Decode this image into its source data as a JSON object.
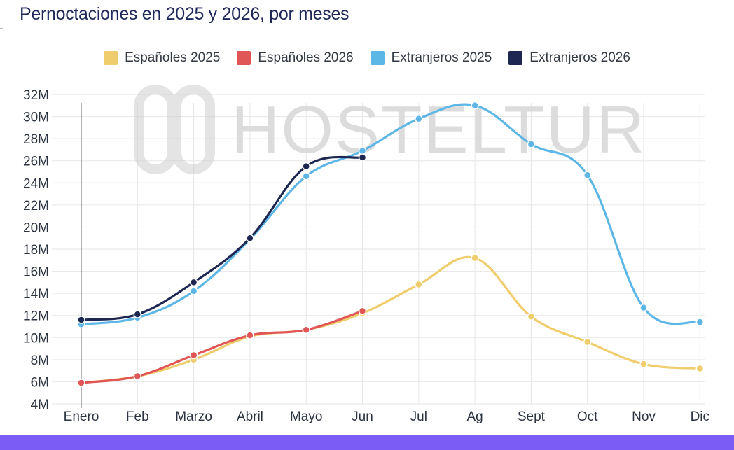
{
  "title": "Pernoctaciones en 2025 y 2026, por meses",
  "watermark": {
    "text": "HOSTELTUR",
    "logo": "hosteltur-logo-icon"
  },
  "chart_data": {
    "type": "line",
    "title": "Pernoctaciones en 2025 y 2026, por meses",
    "xlabel": "",
    "ylabel": "",
    "categories": [
      "Enero",
      "Feb",
      "Marzo",
      "Abril",
      "Mayo",
      "Jun",
      "Jul",
      "Ag",
      "Sept",
      "Oct",
      "Nov",
      "Dic"
    ],
    "y_ticks": [
      "4M",
      "6M",
      "8M",
      "10M",
      "12M",
      "14M",
      "16M",
      "18M",
      "20M",
      "22M",
      "24M",
      "26M",
      "28M",
      "30M",
      "32M"
    ],
    "ylim": [
      4000000,
      32000000
    ],
    "grid": true,
    "legend_position": "top",
    "series": [
      {
        "name": "Españoles 2025",
        "color": "#f0cd6c",
        "values": [
          5.9,
          6.5,
          8.0,
          10.1,
          10.7,
          12.2,
          14.8,
          17.2,
          11.9,
          9.6,
          7.6,
          7.2
        ]
      },
      {
        "name": "Españoles 2026",
        "color": "#e05555",
        "values": [
          5.9,
          6.5,
          8.4,
          10.2,
          10.7,
          12.4,
          null,
          null,
          null,
          null,
          null,
          null
        ]
      },
      {
        "name": "Extranjeros 2025",
        "color": "#5cb6e6",
        "values": [
          11.2,
          11.8,
          14.2,
          18.9,
          24.6,
          26.9,
          29.8,
          31.0,
          27.5,
          24.7,
          12.7,
          11.4
        ]
      },
      {
        "name": "Extranjeros 2026",
        "color": "#1d2752",
        "values": [
          11.6,
          12.1,
          15.0,
          19.0,
          25.5,
          26.3,
          null,
          null,
          null,
          null,
          null,
          null
        ]
      }
    ]
  }
}
